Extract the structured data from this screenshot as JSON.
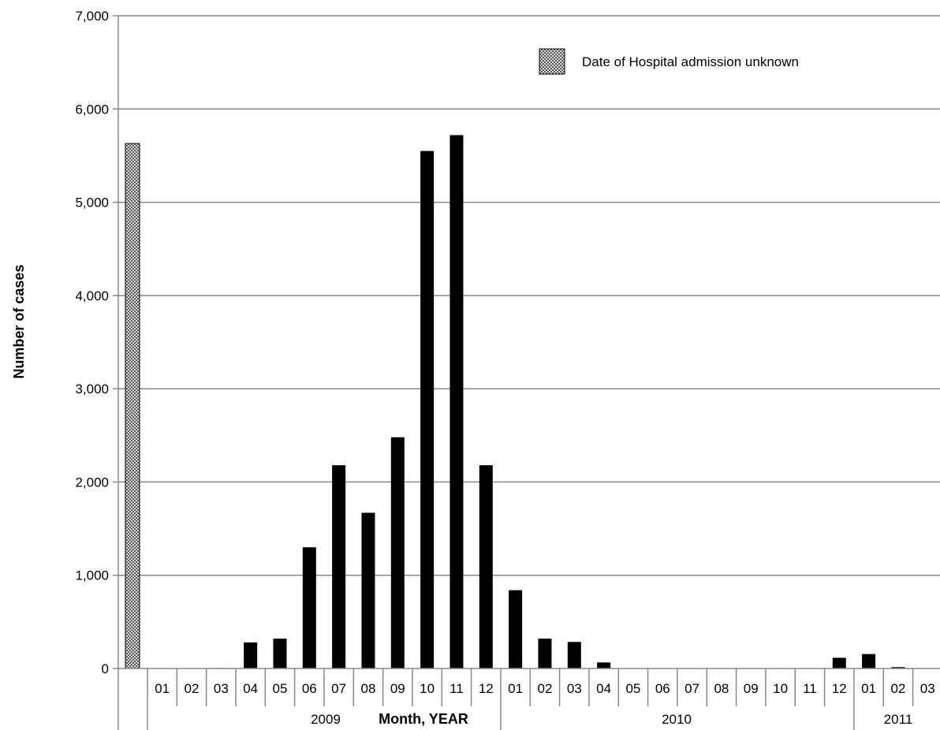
{
  "chart_data": {
    "type": "bar",
    "title": "",
    "ylabel": "Number of cases",
    "xlabel": "Month, YEAR",
    "ylim": [
      0,
      7000
    ],
    "yticks": [
      "0",
      "1,000",
      "2,000",
      "3,000",
      "4,000",
      "5,000",
      "6,000",
      "7,000"
    ],
    "ytick_values": [
      0,
      1000,
      2000,
      3000,
      4000,
      5000,
      6000,
      7000
    ],
    "grid": "horizontal",
    "legend_position": "top-right",
    "unknown_bar": {
      "name": "Date of Hospital admission unknown",
      "value": 5630,
      "color": "#9a9a9a"
    },
    "series_color": "#000000",
    "categories": [
      "01",
      "02",
      "03",
      "04",
      "05",
      "06",
      "07",
      "08",
      "09",
      "10",
      "11",
      "12",
      "01",
      "02",
      "03",
      "04",
      "05",
      "06",
      "07",
      "08",
      "09",
      "10",
      "11",
      "12",
      "01",
      "02",
      "03"
    ],
    "values": [
      0,
      0,
      5,
      280,
      320,
      1300,
      2180,
      1670,
      2480,
      5550,
      5720,
      2180,
      840,
      320,
      285,
      65,
      0,
      0,
      0,
      0,
      0,
      0,
      0,
      115,
      155,
      15,
      0
    ],
    "years": [
      {
        "label": "2009",
        "start": 0,
        "end": 12
      },
      {
        "label": "2010",
        "start": 12,
        "end": 24
      },
      {
        "label": "2011",
        "start": 24,
        "end": 27
      }
    ]
  }
}
